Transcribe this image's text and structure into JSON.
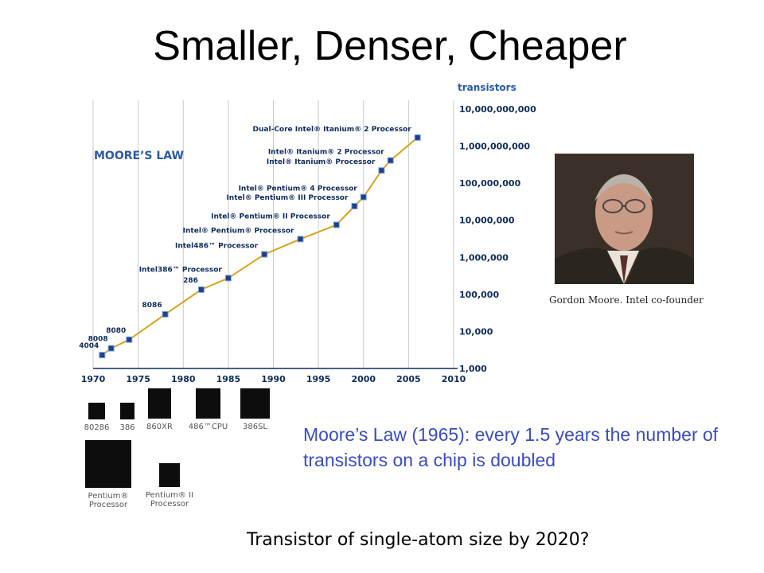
{
  "slide": {
    "title": "Smaller, Denser, Cheaper",
    "moore_text": "Moore’s Law (1965): every 1.5 years the number of transistors on a chip is doubled",
    "bottom_question": "Transistor of single-atom size by 2020?",
    "photo_caption": "Gordon Moore. Intel co-founder"
  },
  "chart_data": {
    "type": "line",
    "title": "MOORE’S LAW",
    "ylabel": "transistors",
    "yscale": "log",
    "xlim": [
      1970,
      2010
    ],
    "ylim": [
      1000,
      10000000000
    ],
    "x_ticks": [
      "1970",
      "1975",
      "1980",
      "1985",
      "1990",
      "1995",
      "2000",
      "2005",
      "2010"
    ],
    "y_ticks": [
      "10,000,000,000",
      "1,000,000,000",
      "100,000,000",
      "10,000,000",
      "1,000,000",
      "100,000",
      "10,000",
      "1,000"
    ],
    "grid": "vertical",
    "line_color": "#d9a21b",
    "points": [
      {
        "label": "4004",
        "x": 1971,
        "y": 2300
      },
      {
        "label": "8008",
        "x": 1972,
        "y": 3500
      },
      {
        "label": "8080",
        "x": 1974,
        "y": 6000
      },
      {
        "label": "8086",
        "x": 1978,
        "y": 29000
      },
      {
        "label": "286",
        "x": 1982,
        "y": 134000
      },
      {
        "label": "Intel386™ Processor",
        "x": 1985,
        "y": 275000
      },
      {
        "label": "Intel486™ Processor",
        "x": 1989,
        "y": 1200000
      },
      {
        "label": "Intel® Pentium® Processor",
        "x": 1993,
        "y": 3100000
      },
      {
        "label": "Intel® Pentium® II Processor",
        "x": 1997,
        "y": 7500000
      },
      {
        "label": "Intel® Pentium® III Processor",
        "x": 1999,
        "y": 24000000
      },
      {
        "label": "Intel® Pentium® 4 Processor",
        "x": 2000,
        "y": 42000000
      },
      {
        "label": "Intel® Itanium® Processor",
        "x": 2002,
        "y": 220000000
      },
      {
        "label": "Intel® Itanium® 2 Processor",
        "x": 2003,
        "y": 410000000
      },
      {
        "label": "Dual-Core Intel® Itanium® 2 Processor",
        "x": 2006,
        "y": 1700000000
      }
    ]
  },
  "chips": [
    {
      "label": "80286"
    },
    {
      "label": "386"
    },
    {
      "label": "860XR"
    },
    {
      "label": "486™CPU"
    },
    {
      "label": "386SL"
    },
    {
      "label": "Pentium® Processor"
    },
    {
      "label": "Pentium® II Processor"
    }
  ]
}
